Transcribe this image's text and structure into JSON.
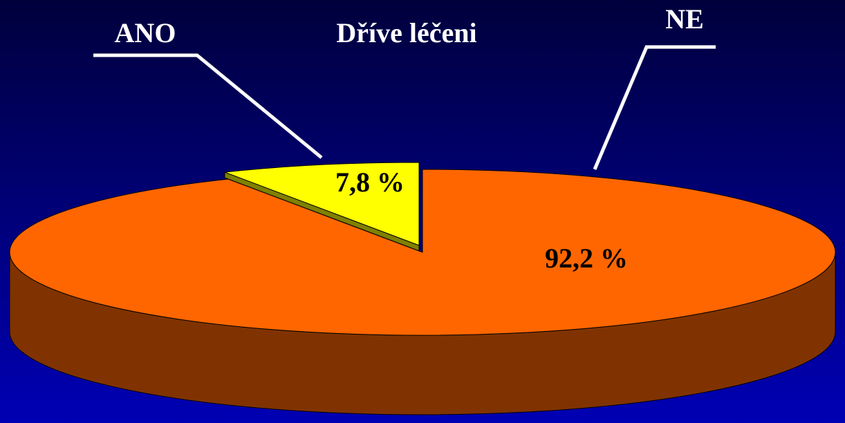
{
  "chart_data": {
    "type": "pie",
    "title": "Dříve léčeni",
    "categories": [
      "ANO",
      "NE"
    ],
    "values": [
      7.8,
      92.2
    ],
    "value_labels": [
      "7,8 %",
      "92,2 %"
    ],
    "colors": [
      "#ffff00",
      "#ff6600"
    ]
  }
}
